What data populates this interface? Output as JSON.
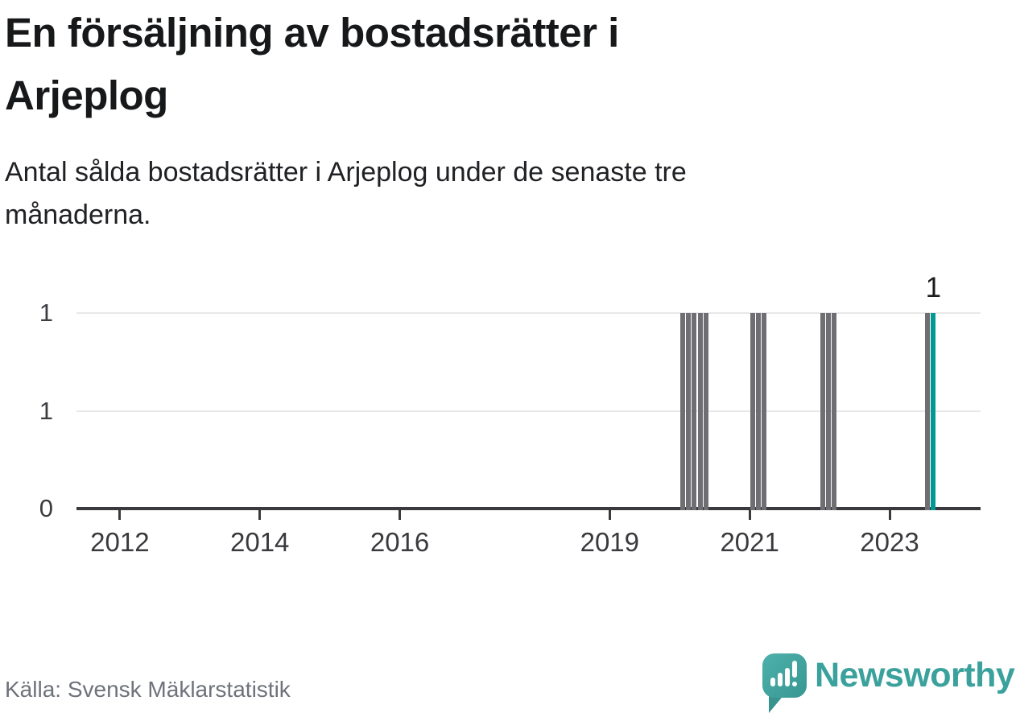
{
  "header": {
    "title_lines": [
      "En försäljning av bostadsrätter i",
      "Arjeplog"
    ],
    "subtitle_lines": [
      "Antal sålda bostadsrätter i Arjeplog under de senaste tre",
      "månaderna."
    ]
  },
  "chart_data": {
    "type": "bar",
    "title": "En försäljning av bostadsrätter i Arjeplog",
    "subtitle": "Antal sålda bostadsrätter i Arjeplog under de senaste tre månaderna.",
    "x_range": [
      2011.38,
      2024.3
    ],
    "x_ticks": [
      2012,
      2014,
      2016,
      2019,
      2021,
      2023
    ],
    "y_range": [
      0,
      1
    ],
    "y_ticks": [
      {
        "label": "1",
        "value": 1
      },
      {
        "label": "1",
        "value": 0.5
      },
      {
        "label": "0",
        "value": 0
      }
    ],
    "grid": true,
    "bars": [
      {
        "month": "2020-01",
        "value": 1
      },
      {
        "month": "2020-02",
        "value": 1
      },
      {
        "month": "2020-03",
        "value": 1
      },
      {
        "month": "2020-04",
        "value": 1
      },
      {
        "month": "2020-05",
        "value": 1
      },
      {
        "month": "2021-01",
        "value": 1
      },
      {
        "month": "2021-02",
        "value": 1
      },
      {
        "month": "2021-03",
        "value": 1
      },
      {
        "month": "2022-01",
        "value": 1
      },
      {
        "month": "2022-02",
        "value": 1
      },
      {
        "month": "2022-03",
        "value": 1
      },
      {
        "month": "2023-07",
        "value": 1
      },
      {
        "month": "2023-08",
        "value": 1,
        "highlight": true,
        "label": "1"
      }
    ],
    "colors": {
      "bar": "#6f6f73",
      "highlight": "#009a93",
      "axis": "#3a3a3e",
      "gridline": "#e8e8e8",
      "brand_teal": "#3aa19c"
    }
  },
  "footer": {
    "source": "Källa: Svensk Mäklarstatistik",
    "brand": "Newsworthy"
  }
}
